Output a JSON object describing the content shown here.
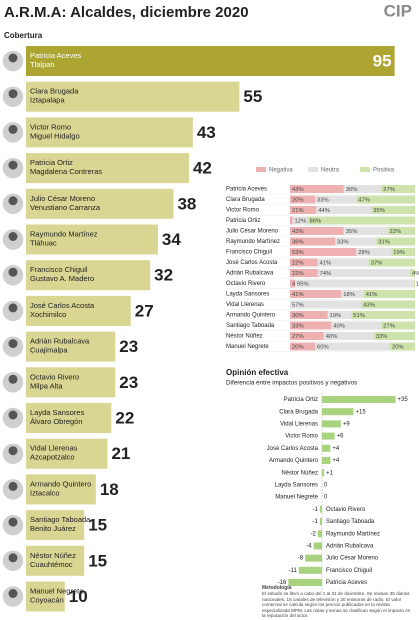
{
  "title": "A.R.M.A: Alcaldes, diciembre 2020",
  "logo": "CIP",
  "chart_data": [
    {
      "type": "bar",
      "title": "Cobertura",
      "categories": [
        "Patricia Aceves",
        "Clara Brugada",
        "Victor Romo",
        "Patricia Ortiz",
        "Julio César Moreno",
        "Raymundo Martínez",
        "Francisco Chiguil",
        "José Carlos Acosta",
        "Adrián Rubalcava",
        "Octavio Rivero",
        "Layda Sansores",
        "Vidal Llerenas",
        "Armando Quintero",
        "Santiago Taboada",
        "Néstor Núñez",
        "Manuel Negrete"
      ],
      "subcategories": [
        "Tlalpan",
        "Iztapalapa",
        "Miguel Hidalgo",
        "Magdalena Contreras",
        "Venustiano Carranza",
        "Tláhuac",
        "Gustavo A. Madero",
        "Xochimilco",
        "Cuajimalpa",
        "Milpa Alta",
        "Álvaro Obregón",
        "Azcapotzalco",
        "Iztacalco",
        "Benito Juárez",
        "Cuauhtémoc",
        "Coyoacán"
      ],
      "values": [
        95,
        55,
        43,
        42,
        38,
        34,
        32,
        27,
        23,
        23,
        22,
        21,
        18,
        15,
        15,
        10
      ],
      "color": "#d9d592",
      "top_color": "#aca531",
      "xlim": [
        0,
        100
      ]
    },
    {
      "type": "stacked_bar",
      "categories": [
        "Patricia Aceves",
        "Clara Brugada",
        "Victor Romo",
        "Patricia Ortiz",
        "Julio César Moreno",
        "Raymundo Martínez",
        "Francisco Chiguil",
        "José Carlos Acosta",
        "Adrián Rubalcava",
        "Octavio Rivero",
        "Layda Sansores",
        "Vidal Llerenas",
        "Armando Quintero",
        "Santiago Taboada",
        "Néstor Núñez",
        "Manuel Negrete"
      ],
      "series": [
        {
          "name": "Negativa",
          "color": "#eeb0b0",
          "values": [
            43,
            20,
            21,
            2,
            43,
            36,
            53,
            22,
            22,
            4,
            41,
            null,
            30,
            33,
            27,
            20
          ],
          "value_labels": [
            "43%",
            "20%",
            "21%",
            "2%",
            "43%",
            "36%",
            "53%",
            "22%",
            "22%",
            "4%",
            "41%",
            null,
            "30%",
            "33%",
            "27%",
            "20%"
          ]
        },
        {
          "name": "Neutra",
          "color": "#e2e2e2",
          "values": [
            30,
            33,
            44,
            12,
            35,
            33,
            28,
            41,
            74,
            95,
            18,
            57,
            19,
            40,
            40,
            60
          ],
          "value_labels": [
            "30%",
            "33%",
            "44%",
            "12%",
            "35%",
            "33%",
            "28%",
            "41%",
            "74%",
            "95%",
            "18%",
            "57%",
            "19%",
            "40%",
            "40%",
            "60%"
          ]
        },
        {
          "name": "Positiva",
          "color": "#cde3ab",
          "values": [
            27,
            47,
            35,
            86,
            22,
            31,
            19,
            37,
            4,
            1,
            41,
            43,
            51,
            27,
            33,
            20
          ],
          "value_labels": [
            "27%",
            "47%",
            "35%",
            "86%",
            "22%",
            "31%",
            "19%",
            "37%",
            "4%",
            "1%",
            "41%",
            "43%",
            "51%",
            "27%",
            "33%",
            "20%"
          ]
        }
      ],
      "xlim": [
        0,
        100
      ]
    },
    {
      "type": "diverging_bar",
      "title": "Opinión efectiva",
      "subtitle": "Diferencia entre impactos positivos y negativos",
      "categories": [
        "Patricia Ortiz",
        "Clara Brugada",
        "Vidal Llerenas",
        "Victor Romo",
        "José Carlos Acosta",
        "Armando Quintero",
        "Néstor Núñez",
        "Layda Sansores",
        "Manuel Negrete",
        "Octavio Rivero",
        "Santiago Taboada",
        "Raymundo Martínez",
        "Adrián Rubalcava",
        "Julio César Moreno",
        "Francisco Chiguil",
        "Patricia Aceves"
      ],
      "values": [
        35,
        15,
        9,
        6,
        4,
        4,
        1,
        0,
        0,
        -1,
        -1,
        -2,
        -4,
        -8,
        -11,
        -16
      ],
      "value_labels": [
        "+35",
        "+15",
        "+9",
        "+6",
        "+4",
        "+4",
        "+1",
        "0",
        "0",
        "-1",
        "-1",
        "-2",
        "-4",
        "-8",
        "-11",
        "-16"
      ],
      "color": "#a9d27f",
      "xlim": [
        -20,
        40
      ]
    }
  ],
  "methodology": {
    "title": "Metodología",
    "text": "El estudio se llevó a cabo del 1 al 31 de diciembre. Se revisan 35 diarios nacionales, 15 canales de televisión y 30 emisoras de radio. El valor comercial se calcula según los precios publicados en la revista especializada MPM. Las notas y temas se clasifican según el impacto en la reputación del actor."
  }
}
